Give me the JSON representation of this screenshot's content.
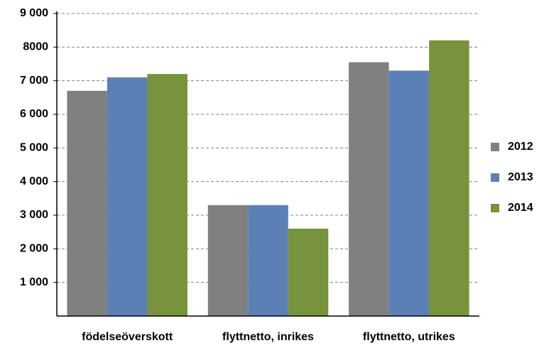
{
  "chart_data": {
    "type": "bar",
    "categories": [
      "födelseöverskott",
      "flyttnetto, inrikes",
      "flyttnetto, utrikes"
    ],
    "series": [
      {
        "name": "2012",
        "color": "#808080",
        "values": [
          6700,
          3300,
          7550
        ]
      },
      {
        "name": "2013",
        "color": "#5b80b5",
        "values": [
          7100,
          3300,
          7300
        ]
      },
      {
        "name": "2014",
        "color": "#77933c",
        "values": [
          7200,
          2600,
          8200
        ]
      }
    ],
    "ylim": [
      0,
      9000
    ],
    "yticks": [
      {
        "value": 1000,
        "label": "1 000"
      },
      {
        "value": 2000,
        "label": "2 000"
      },
      {
        "value": 3000,
        "label": "3 000"
      },
      {
        "value": 4000,
        "label": "4 000"
      },
      {
        "value": 5000,
        "label": "5 000"
      },
      {
        "value": 6000,
        "label": "6 000"
      },
      {
        "value": 7000,
        "label": "7 000"
      },
      8000,
      {
        "value": 9000,
        "label": "9 000"
      }
    ],
    "grid": true,
    "legend": "right"
  }
}
